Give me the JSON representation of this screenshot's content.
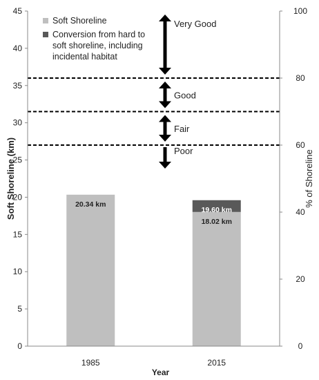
{
  "chart_data": {
    "type": "bar",
    "xlabel": "Year",
    "ylabel": "Soft Shoreline (km)",
    "y2label": "% of Shoreline",
    "ylim": [
      0,
      45
    ],
    "y2lim": [
      0,
      100
    ],
    "yticks": [
      0,
      5,
      10,
      15,
      20,
      25,
      30,
      35,
      40,
      45
    ],
    "y2ticks": [
      0,
      20,
      40,
      60,
      80,
      100
    ],
    "categories": [
      "1985",
      "2015"
    ],
    "series": [
      {
        "name": "Soft Shoreline",
        "values": [
          20.34,
          18.02
        ],
        "color": "#bfbfbf"
      },
      {
        "name": "Conversion from hard to soft shoreline, including incidental habitat",
        "values": [
          0,
          1.58
        ],
        "color": "#595959"
      }
    ],
    "data_labels": [
      {
        "category": "1985",
        "text": "20.34 km",
        "y": 20.34,
        "style": "dark"
      },
      {
        "category": "2015",
        "text": "19.60 km",
        "y": 19.6,
        "style": "light"
      },
      {
        "category": "2015",
        "text": "18.02 km",
        "y": 18.02,
        "style": "dark"
      }
    ],
    "legend": {
      "position": "top-left",
      "items": [
        {
          "lines": [
            "Soft Shoreline"
          ],
          "color": "#bfbfbf"
        },
        {
          "lines": [
            "Conversion from hard to",
            "soft shoreline, including",
            "incidental habitat"
          ],
          "color": "#595959"
        }
      ]
    },
    "thresholds": [
      {
        "y2": 80,
        "style": "dashed"
      },
      {
        "y2": 70,
        "style": "dashed"
      },
      {
        "y2": 60,
        "style": "dashed"
      }
    ],
    "zones": [
      {
        "label": "Very Good",
        "y2_from": 80,
        "y2_to": 100
      },
      {
        "label": "Good",
        "y2_from": 70,
        "y2_to": 80
      },
      {
        "label": "Fair",
        "y2_from": 60,
        "y2_to": 70
      },
      {
        "label": "Poor",
        "y2_from": 53,
        "y2_to": 60,
        "direction": "down"
      }
    ],
    "grid": false
  }
}
